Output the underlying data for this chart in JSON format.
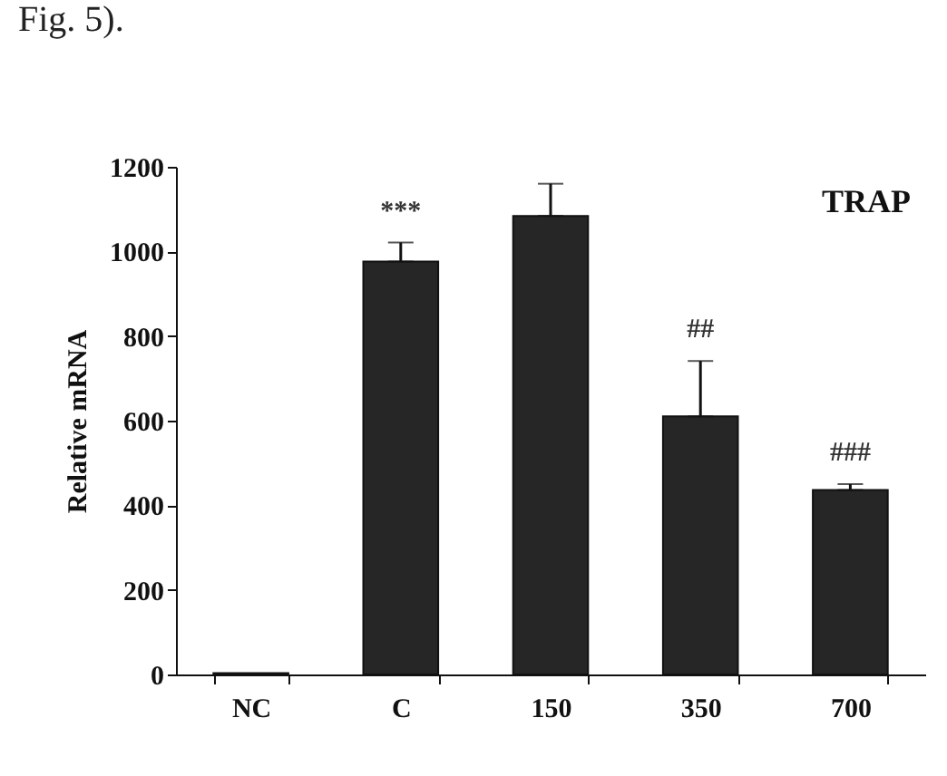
{
  "chart_data": {
    "type": "bar",
    "title": "TRAP",
    "ylabel": "Relative mRNA",
    "categories": [
      "NC",
      "C",
      "150",
      "350",
      "700"
    ],
    "values": [
      3,
      976,
      1084,
      610,
      436
    ],
    "errors": [
      null,
      45,
      76,
      131,
      14
    ],
    "color": "#262626",
    "ylim": [
      0,
      1200
    ],
    "yticks": [
      0,
      200,
      400,
      600,
      800,
      1000,
      1200
    ],
    "grid": false,
    "annotations": [
      "Fig. 5).",
      {
        "text": "***",
        "x": "C",
        "y": 1021
      },
      {
        "text": "##",
        "x": "350",
        "y": 741
      },
      {
        "text": "###",
        "x": "700",
        "y": 450
      }
    ]
  }
}
